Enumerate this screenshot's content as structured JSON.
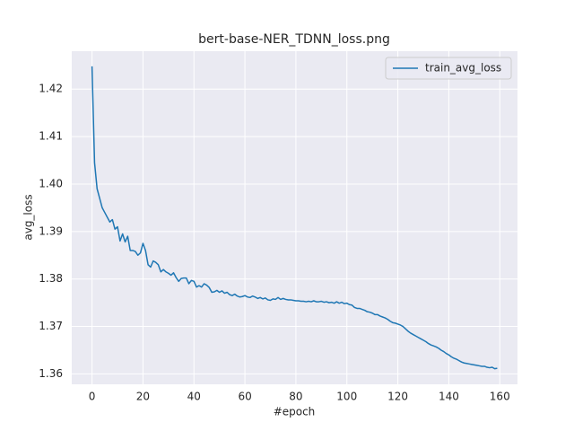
{
  "chart_data": {
    "type": "line",
    "title": "bert-base-NER_TDNN_loss.png",
    "x_label": "#epoch",
    "y_label": "avg_loss",
    "x": [
      0,
      1,
      2,
      3,
      4,
      5,
      6,
      7,
      8,
      9,
      10,
      11,
      12,
      13,
      14,
      15,
      16,
      17,
      18,
      19,
      20,
      21,
      22,
      23,
      24,
      25,
      26,
      27,
      28,
      29,
      30,
      31,
      32,
      33,
      34,
      35,
      36,
      37,
      38,
      39,
      40,
      41,
      42,
      43,
      44,
      45,
      46,
      47,
      48,
      49,
      50,
      51,
      52,
      53,
      54,
      55,
      56,
      57,
      58,
      59,
      60,
      61,
      62,
      63,
      64,
      65,
      66,
      67,
      68,
      69,
      70,
      71,
      72,
      73,
      74,
      75,
      76,
      77,
      78,
      79,
      80,
      81,
      82,
      83,
      84,
      85,
      86,
      87,
      88,
      89,
      90,
      91,
      92,
      93,
      94,
      95,
      96,
      97,
      98,
      99,
      100,
      101,
      102,
      103,
      104,
      105,
      106,
      107,
      108,
      109,
      110,
      111,
      112,
      113,
      114,
      115,
      116,
      117,
      118,
      119,
      120,
      121,
      122,
      123,
      124,
      125,
      126,
      127,
      128,
      129,
      130,
      131,
      132,
      133,
      134,
      135,
      136,
      137,
      138,
      139,
      140,
      141,
      142,
      143,
      144,
      145,
      146,
      147,
      148,
      149,
      150,
      151,
      152,
      153,
      154,
      155,
      156,
      157,
      158,
      159
    ],
    "series": [
      {
        "name": "train_avg_loss",
        "color": "#1f77b4",
        "values": [
          1.4248,
          1.4045,
          1.399,
          1.397,
          1.395,
          1.394,
          1.393,
          1.392,
          1.3925,
          1.3905,
          1.391,
          1.388,
          1.3895,
          1.3878,
          1.389,
          1.386,
          1.386,
          1.3858,
          1.385,
          1.3855,
          1.3875,
          1.386,
          1.383,
          1.3825,
          1.3838,
          1.3835,
          1.383,
          1.3815,
          1.382,
          1.3815,
          1.3812,
          1.3808,
          1.3813,
          1.3803,
          1.3795,
          1.3801,
          1.3802,
          1.3802,
          1.379,
          1.3797,
          1.3795,
          1.3783,
          1.3786,
          1.3783,
          1.379,
          1.3787,
          1.3782,
          1.3772,
          1.3773,
          1.3776,
          1.3772,
          1.3775,
          1.377,
          1.3772,
          1.3767,
          1.3765,
          1.3768,
          1.3764,
          1.3762,
          1.3763,
          1.3765,
          1.3762,
          1.3761,
          1.3764,
          1.3762,
          1.3759,
          1.3761,
          1.3758,
          1.376,
          1.3756,
          1.3755,
          1.3758,
          1.3757,
          1.3761,
          1.3757,
          1.3759,
          1.3757,
          1.3756,
          1.3756,
          1.3755,
          1.3754,
          1.3754,
          1.3753,
          1.3753,
          1.3752,
          1.3753,
          1.3752,
          1.3754,
          1.3752,
          1.3752,
          1.3753,
          1.3751,
          1.3752,
          1.375,
          1.3751,
          1.3749,
          1.3752,
          1.3749,
          1.3751,
          1.3748,
          1.3749,
          1.3746,
          1.3745,
          1.374,
          1.3738,
          1.3738,
          1.3736,
          1.3734,
          1.3731,
          1.373,
          1.3728,
          1.3725,
          1.3725,
          1.3722,
          1.372,
          1.3718,
          1.3715,
          1.3711,
          1.3708,
          1.3707,
          1.3705,
          1.3703,
          1.37,
          1.3695,
          1.369,
          1.3686,
          1.3683,
          1.368,
          1.3677,
          1.3674,
          1.3671,
          1.3668,
          1.3664,
          1.3661,
          1.3659,
          1.3657,
          1.3654,
          1.365,
          1.3647,
          1.3643,
          1.364,
          1.3636,
          1.3633,
          1.3631,
          1.3628,
          1.3625,
          1.3623,
          1.3622,
          1.3621,
          1.362,
          1.3619,
          1.3618,
          1.3617,
          1.3616,
          1.3616,
          1.3614,
          1.3613,
          1.3614,
          1.3611,
          1.3612
        ]
      }
    ],
    "xlim": [
      -7.95,
      166.95
    ],
    "xticks": [
      0,
      20,
      40,
      60,
      80,
      100,
      120,
      140,
      160
    ],
    "ylim": [
      1.35781,
      1.42799
    ],
    "yticks": [
      1.36,
      1.37,
      1.38,
      1.39,
      {
        "value": 1.4,
        "label": "1.40"
      },
      1.41,
      1.42
    ],
    "grid": true,
    "legend": "upper right"
  }
}
